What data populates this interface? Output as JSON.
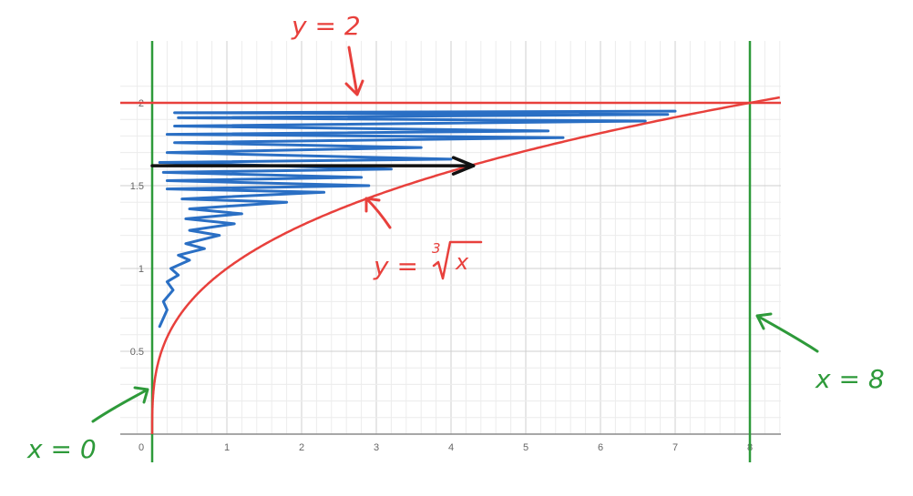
{
  "chart_data": {
    "type": "line",
    "xlim": [
      0,
      8.4
    ],
    "ylim": [
      0,
      2.1
    ],
    "grid": true,
    "x_ticks": [
      "0",
      "1",
      "2",
      "3",
      "4",
      "5",
      "6",
      "7",
      "8"
    ],
    "y_ticks": [
      {
        "v": 0.5,
        "label": "0.5"
      },
      {
        "v": 1,
        "label": "1"
      },
      {
        "v": 1.5,
        "label": "1.5"
      },
      {
        "v": 2,
        "label": "2"
      }
    ],
    "curve": {
      "expr": "cube root of x",
      "x_from": 0,
      "x_to": 8.4,
      "color": "#e8403c"
    },
    "horizontal_line": {
      "y": 2,
      "color": "#e8403c"
    },
    "vertical_lines": [
      {
        "x": 0,
        "color": "#2e9a3a"
      },
      {
        "x": 8,
        "color": "#2e9a3a"
      }
    ],
    "arrow": {
      "x_from": 0,
      "x_to": 4.3,
      "y": 1.62,
      "color": "#111111"
    },
    "scribble_color": "#2a6fc4",
    "scribble": [
      [
        0.1,
        0.65
      ],
      [
        0.2,
        0.75
      ],
      [
        0.15,
        0.8
      ],
      [
        0.28,
        0.87
      ],
      [
        0.2,
        0.92
      ],
      [
        0.35,
        0.96
      ],
      [
        0.25,
        1.0
      ],
      [
        0.5,
        1.05
      ],
      [
        0.35,
        1.08
      ],
      [
        0.7,
        1.12
      ],
      [
        0.45,
        1.15
      ],
      [
        0.9,
        1.2
      ],
      [
        0.5,
        1.23
      ],
      [
        1.1,
        1.27
      ],
      [
        0.45,
        1.3
      ],
      [
        1.2,
        1.33
      ],
      [
        0.5,
        1.36
      ],
      [
        1.8,
        1.4
      ],
      [
        0.4,
        1.42
      ],
      [
        2.3,
        1.46
      ],
      [
        0.2,
        1.48
      ],
      [
        2.9,
        1.5
      ],
      [
        0.2,
        1.53
      ],
      [
        2.8,
        1.55
      ],
      [
        0.15,
        1.58
      ],
      [
        3.2,
        1.6
      ],
      [
        0.1,
        1.64
      ],
      [
        4.0,
        1.66
      ],
      [
        0.2,
        1.7
      ],
      [
        3.6,
        1.73
      ],
      [
        0.3,
        1.76
      ],
      [
        5.5,
        1.79
      ],
      [
        0.2,
        1.81
      ],
      [
        5.3,
        1.83
      ],
      [
        0.3,
        1.86
      ],
      [
        6.6,
        1.89
      ],
      [
        0.35,
        1.91
      ],
      [
        6.9,
        1.93
      ],
      [
        0.3,
        1.94
      ],
      [
        7.0,
        1.95
      ]
    ]
  },
  "annotations": {
    "y2": "y = 2",
    "x0": "x = 0",
    "x8": "x = 8",
    "curve_label_y": "y =",
    "curve_label_index": "3",
    "curve_label_x": "x"
  },
  "colors": {
    "annotation_red": "#e8403c",
    "annotation_green": "#2e9a3a",
    "grid_minor": "#ececec",
    "grid_major": "#cfcfcf",
    "axis": "#8a8a8a"
  }
}
